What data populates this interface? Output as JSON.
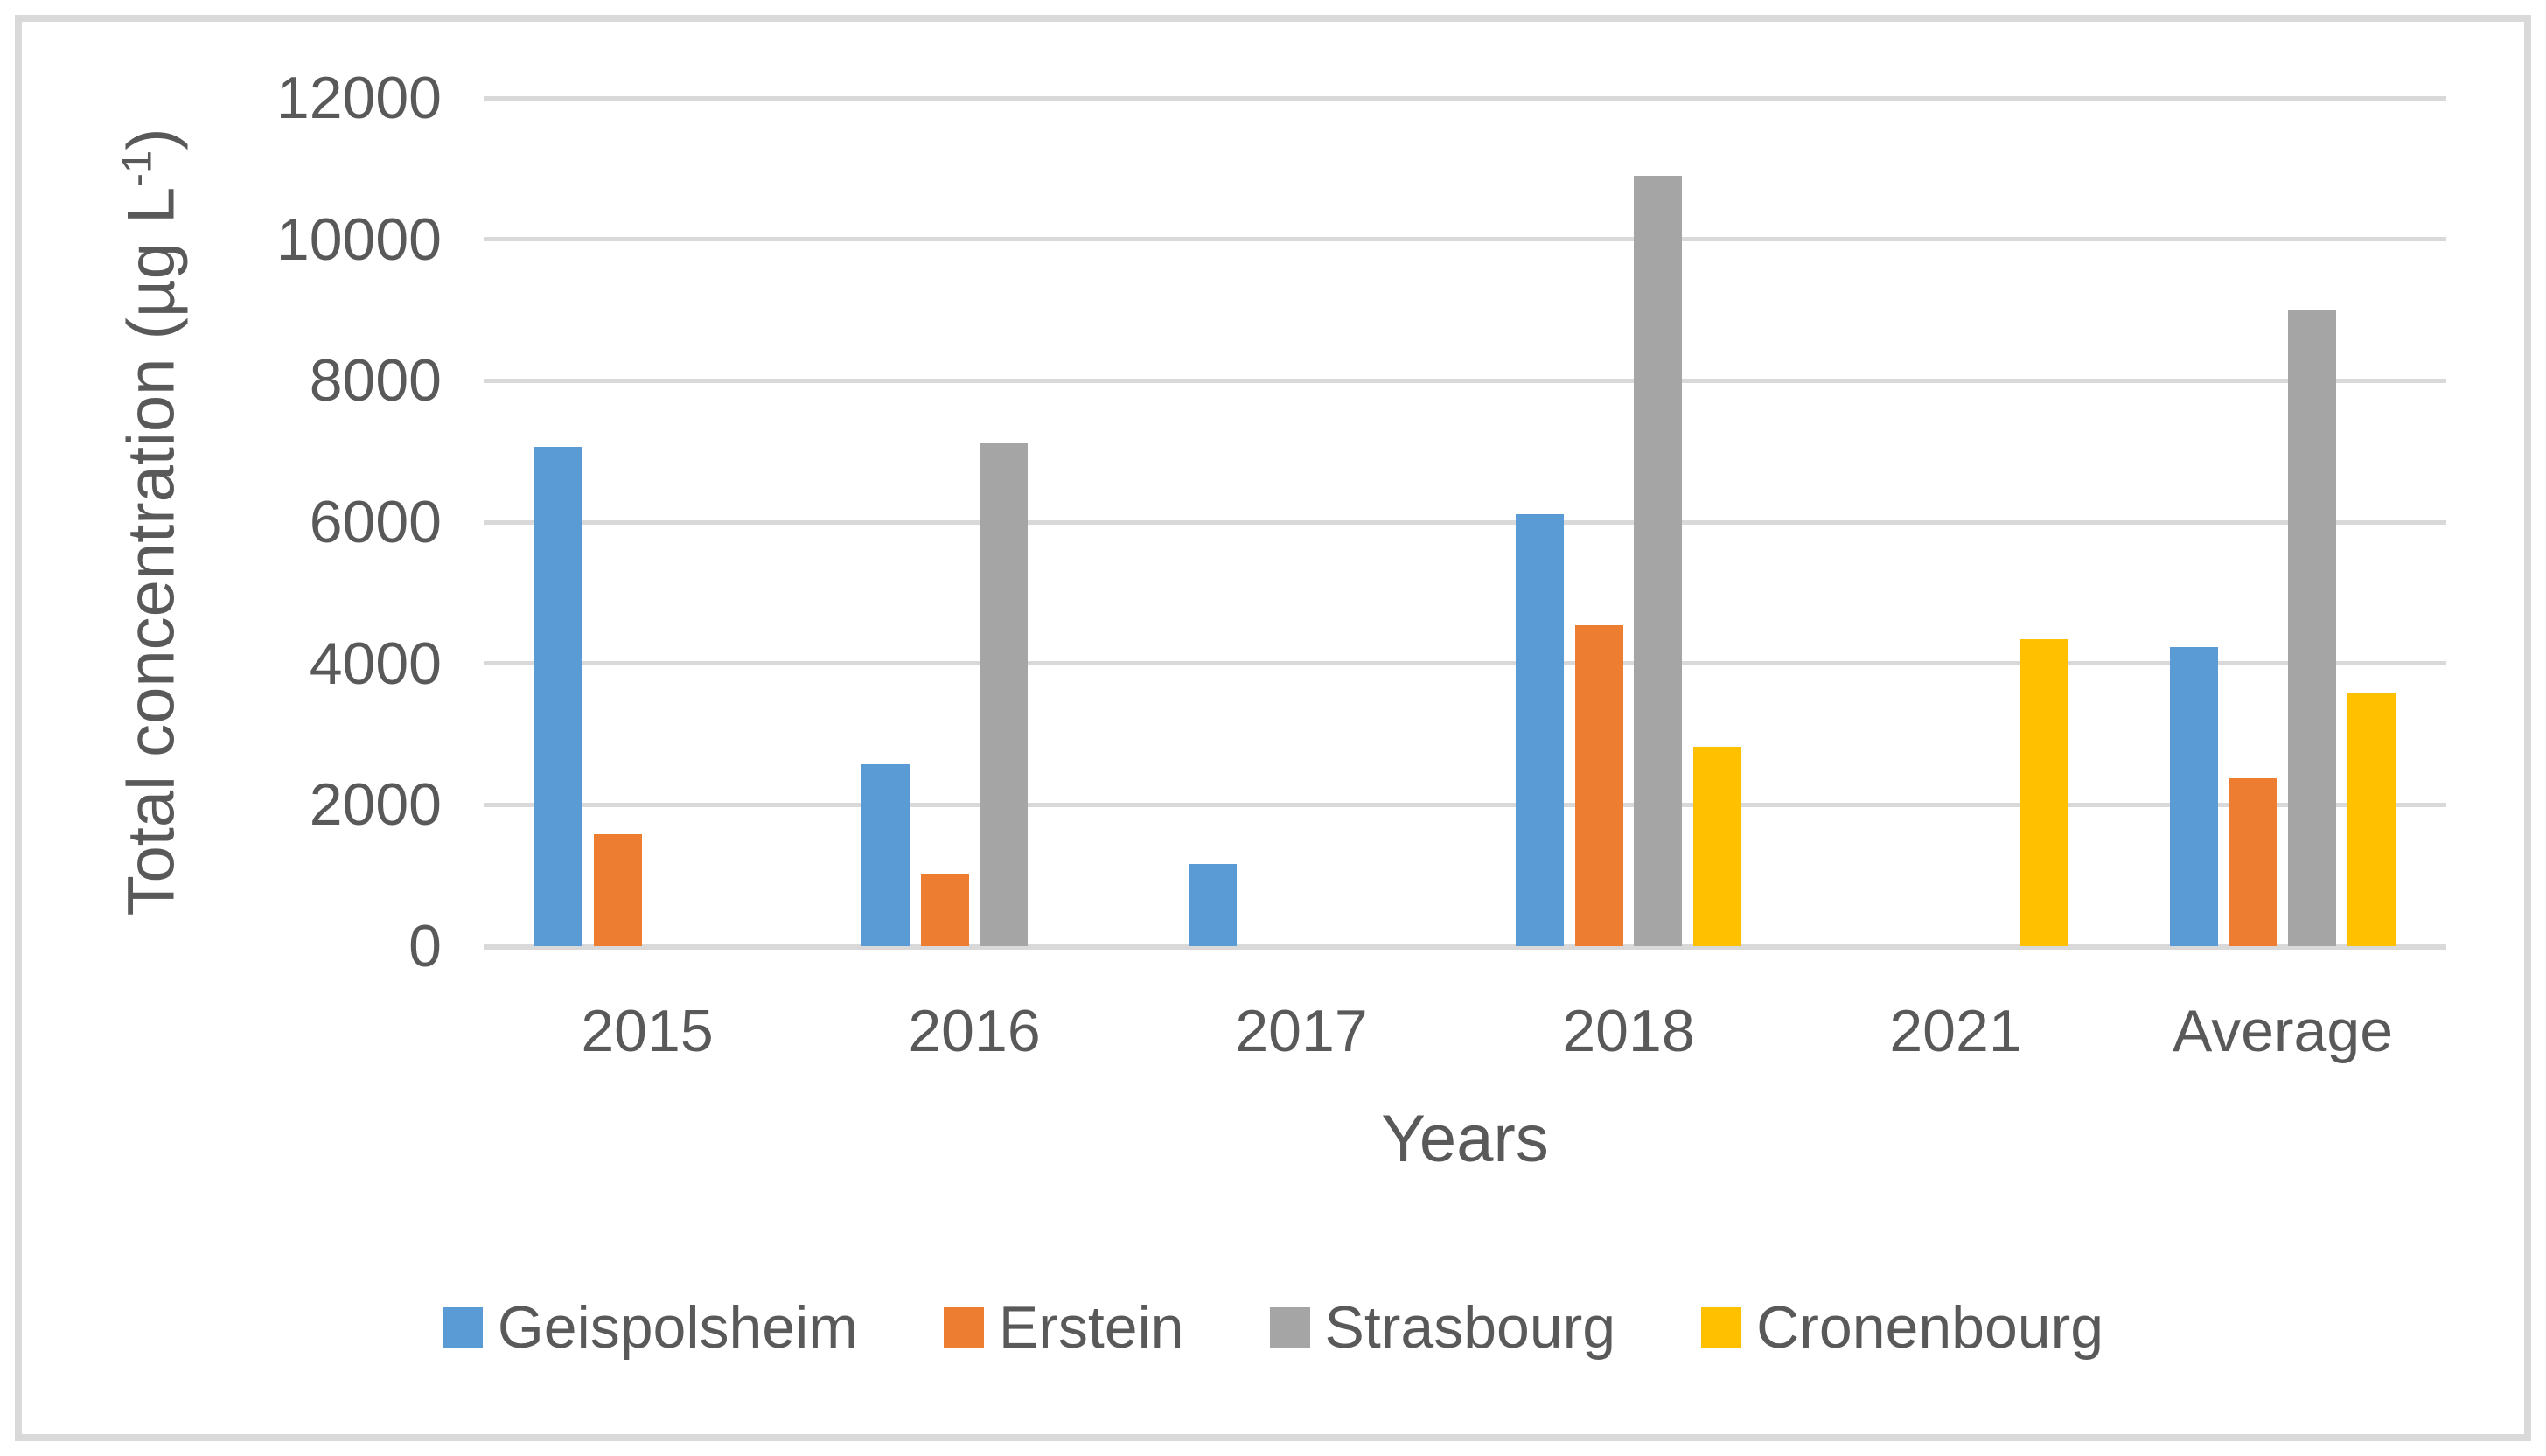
{
  "chart_data": {
    "type": "bar",
    "title": "",
    "categories": [
      "2015",
      "2016",
      "2017",
      "2018",
      "2021",
      "Average"
    ],
    "series": [
      {
        "name": "Geispolsheim",
        "color": "#5B9BD5",
        "values": [
          7070,
          2570,
          1160,
          6110,
          null,
          4230
        ]
      },
      {
        "name": "Erstein",
        "color": "#ED7D31",
        "values": [
          1580,
          1010,
          null,
          4540,
          null,
          2380
        ]
      },
      {
        "name": "Strasbourg",
        "color": "#A5A5A5",
        "values": [
          null,
          7110,
          null,
          10900,
          null,
          9000
        ]
      },
      {
        "name": "Cronenbourg",
        "color": "#FFC000",
        "values": [
          null,
          null,
          null,
          2820,
          4340,
          3580
        ]
      }
    ],
    "xlabel": "Years",
    "ylabel": "Total concentration (µg L-1)",
    "ylabel_parts": {
      "main": "Total concentration (µg L",
      "sup": "-1",
      "close": ")"
    },
    "ylim": [
      0,
      12000
    ],
    "yticks": [
      0,
      2000,
      4000,
      6000,
      8000,
      10000,
      12000
    ],
    "grid": "horizontal",
    "legend_position": "bottom",
    "colors": {
      "gridline": "#D9D9D9",
      "frame_border": "#D9D9D9",
      "text": "#595959",
      "background": "#FFFFFF"
    }
  }
}
